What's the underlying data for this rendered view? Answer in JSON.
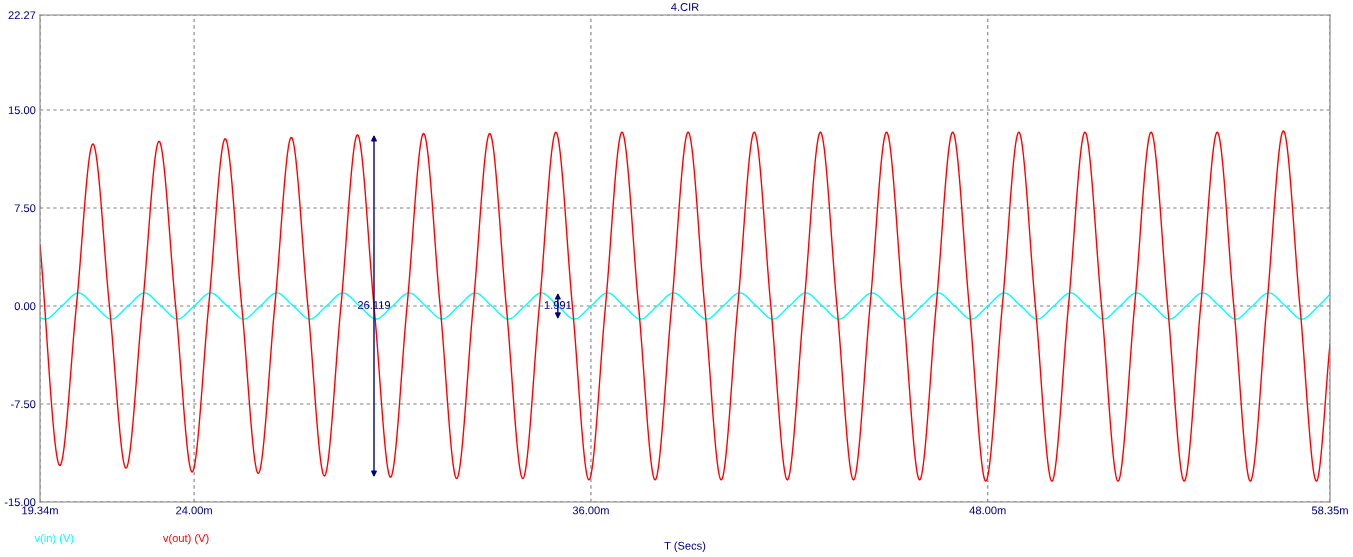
{
  "chart_data": {
    "type": "line",
    "title": "4.CIR",
    "xlabel": "T (Secs)",
    "xlim": [
      19.34,
      58.35
    ],
    "ylim": [
      -15.0,
      22.27
    ],
    "xticks": [
      {
        "value": 19.34,
        "label": "19.34m"
      },
      {
        "value": 24.0,
        "label": "24.00m"
      },
      {
        "value": 36.0,
        "label": "36.00m"
      },
      {
        "value": 48.0,
        "label": "48.00m"
      },
      {
        "value": 58.35,
        "label": "58.35m"
      }
    ],
    "yticks": [
      {
        "value": -15.0,
        "label": "-15.00"
      },
      {
        "value": -7.5,
        "label": "-7.50"
      },
      {
        "value": 0.0,
        "label": "0.00"
      },
      {
        "value": 7.5,
        "label": "7.50"
      },
      {
        "value": 15.0,
        "label": "15.00"
      },
      {
        "value": 22.27,
        "label": "22.27"
      }
    ],
    "grid": true,
    "legend": "bottom left",
    "line_style": "solid",
    "series": [
      {
        "name": "v(in) (V)",
        "color": "#00ffff",
        "x": [
          19.34,
          19.5,
          20.0,
          20.5,
          21.0,
          21.5,
          22.0,
          22.5,
          23.0,
          23.5,
          24.0,
          24.5,
          25.0,
          25.5,
          26.0,
          26.5,
          27.0,
          27.5,
          28.0,
          28.5,
          29.0,
          29.5,
          30.0,
          30.5,
          31.0,
          31.5,
          32.0,
          32.5,
          33.0,
          33.5,
          34.0,
          34.5,
          35.0,
          35.5,
          36.0,
          36.5,
          37.0,
          37.5,
          38.0,
          38.5,
          39.0,
          39.5,
          40.0,
          40.5,
          41.0,
          41.5,
          42.0,
          42.5,
          43.0,
          43.5,
          44.0,
          44.5,
          45.0,
          45.5,
          46.0,
          46.5,
          47.0,
          47.5,
          48.0,
          48.5,
          49.0,
          49.5,
          50.0,
          50.5,
          51.0,
          51.5,
          52.0,
          52.5,
          53.0,
          53.5,
          54.0,
          54.5,
          55.0,
          55.5,
          56.0,
          56.5,
          57.0,
          57.5,
          58.0,
          58.35
        ],
        "values": [
          -0.9,
          -1.0,
          0,
          1.0,
          0,
          -1.0,
          0,
          1.0,
          0,
          -1.0,
          0,
          1.0,
          0,
          -1.0,
          0,
          1.0,
          0,
          -1.0,
          0,
          1.0,
          0,
          -1.0,
          0,
          1.0,
          0,
          -1.0,
          0,
          1.0,
          0,
          -1.0,
          0,
          1.0,
          0,
          -1.0,
          0,
          1.0,
          0,
          -1.0,
          0,
          1.0,
          0,
          -1.0,
          0,
          1.0,
          0,
          -1.0,
          0,
          1.0,
          0,
          -1.0,
          0,
          1.0,
          0,
          -1.0,
          0,
          1.0,
          0,
          -1.0,
          0,
          1.0,
          0,
          -1.0,
          0,
          1.0,
          0,
          -1.0,
          0,
          1.0,
          0,
          -1.0,
          0,
          1.0,
          0,
          -1.0,
          0,
          1.0,
          0,
          -1.0,
          0,
          0.9
        ]
      },
      {
        "name": "v(out) (V)",
        "color": "#ff0000",
        "x": [
          19.34,
          19.94,
          20.44,
          20.94,
          21.44,
          21.94,
          22.44,
          22.94,
          23.44,
          23.94,
          24.44,
          24.94,
          25.44,
          25.94,
          26.44,
          26.94,
          27.44,
          27.94,
          28.44,
          28.94,
          29.44,
          29.94,
          30.44,
          30.94,
          31.44,
          31.94,
          32.44,
          32.94,
          33.44,
          33.94,
          34.44,
          34.94,
          35.44,
          35.94,
          36.44,
          36.94,
          37.44,
          37.94,
          38.44,
          38.94,
          39.44,
          39.94,
          40.44,
          40.94,
          41.44,
          41.94,
          42.44,
          42.94,
          43.44,
          43.94,
          44.44,
          44.94,
          45.44,
          45.94,
          46.44,
          46.94,
          47.44,
          47.94,
          48.44,
          48.94,
          49.44,
          49.94,
          50.44,
          50.94,
          51.44,
          51.94,
          52.44,
          52.94,
          53.44,
          53.94,
          54.44,
          54.94,
          55.44,
          55.94,
          56.44,
          56.94,
          57.44,
          57.94,
          58.35
        ],
        "values": [
          4.7,
          -12.2,
          0,
          12.4,
          0,
          -12.4,
          0,
          12.6,
          0,
          -12.7,
          0,
          12.8,
          0,
          -12.8,
          0,
          12.9,
          0,
          -13.0,
          0,
          13.1,
          0,
          -13.1,
          0,
          13.2,
          0,
          -13.2,
          0,
          13.2,
          0,
          -13.2,
          0,
          13.3,
          0,
          -13.3,
          0,
          13.3,
          0,
          -13.3,
          0,
          13.3,
          0,
          -13.3,
          0,
          13.3,
          0,
          -13.3,
          0,
          13.3,
          0,
          -13.3,
          0,
          13.3,
          0,
          -13.3,
          0,
          13.3,
          0,
          -13.4,
          0,
          13.3,
          0,
          -13.4,
          0,
          13.3,
          0,
          -13.4,
          0,
          13.3,
          0,
          -13.4,
          0,
          13.3,
          0,
          -13.4,
          0,
          13.4,
          0,
          -13.4,
          -2.9
        ]
      }
    ],
    "annotations": [
      {
        "text": "1.991",
        "x": 35.0,
        "y": 0.0
      },
      {
        "text": "26.119",
        "x": 29.44,
        "y": 0.0
      }
    ]
  }
}
